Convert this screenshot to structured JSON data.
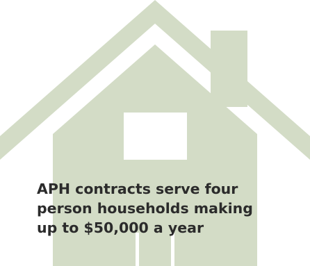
{
  "colors": {
    "house": "#d3dcc6",
    "window": "#ffffff",
    "text": "#2b2b2b"
  },
  "graphic": {
    "icon": "house-icon"
  },
  "caption": {
    "lines": [
      "APH contracts serve four",
      "person households making",
      "up to $50,000 a year"
    ]
  }
}
